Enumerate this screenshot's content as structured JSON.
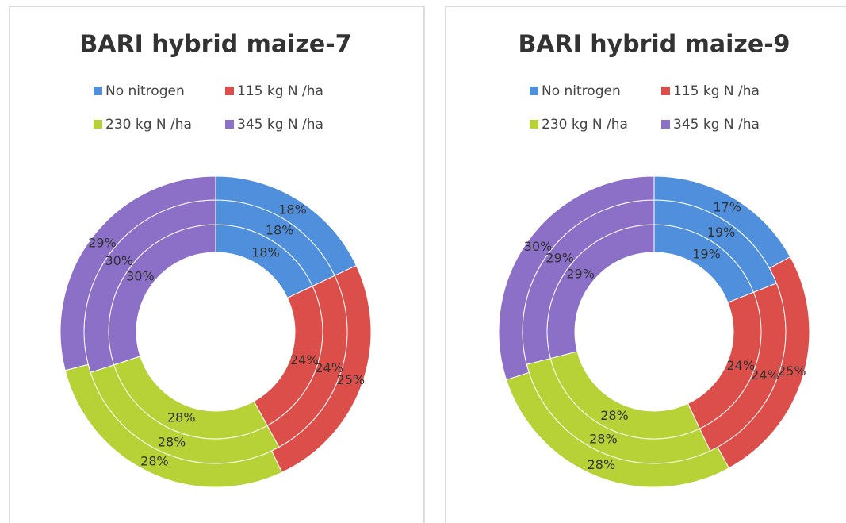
{
  "chart_data": [
    {
      "type": "donut",
      "title": "BARI hybrid maize-7",
      "categories": [
        "No nitrogen",
        "115  kg N /ha",
        "230  kg N /ha",
        "345 kg N /ha"
      ],
      "colors": [
        "#4f8fdc",
        "#dc4e4a",
        "#b6d236",
        "#8c70c8"
      ],
      "rings": [
        {
          "values": [
            18,
            24,
            28,
            30
          ],
          "value_labels": [
            "18%",
            "24%",
            "28%",
            "30%"
          ]
        },
        {
          "values": [
            18,
            24,
            28,
            30
          ],
          "value_labels": [
            "18%",
            "24%",
            "28%",
            "30%"
          ]
        },
        {
          "values": [
            18,
            25,
            28,
            29
          ],
          "value_labels": [
            "18%",
            "25%",
            "28%",
            "29%"
          ]
        }
      ]
    },
    {
      "type": "donut",
      "title": "BARI hybrid maize-9",
      "categories": [
        "No nitrogen",
        "115  kg N /ha",
        "230  kg N /ha",
        "345 kg N /ha"
      ],
      "colors": [
        "#4f8fdc",
        "#dc4e4a",
        "#b6d236",
        "#8c70c8"
      ],
      "rings": [
        {
          "values": [
            19,
            24,
            28,
            29
          ],
          "value_labels": [
            "19%",
            "24%",
            "28%",
            "29%"
          ]
        },
        {
          "values": [
            19,
            24,
            28,
            29
          ],
          "value_labels": [
            "19%",
            "24%",
            "28%",
            "29%"
          ]
        },
        {
          "values": [
            17,
            25,
            28,
            30
          ],
          "value_labels": [
            "17%",
            "25%",
            "28%",
            "30%"
          ]
        }
      ]
    }
  ]
}
